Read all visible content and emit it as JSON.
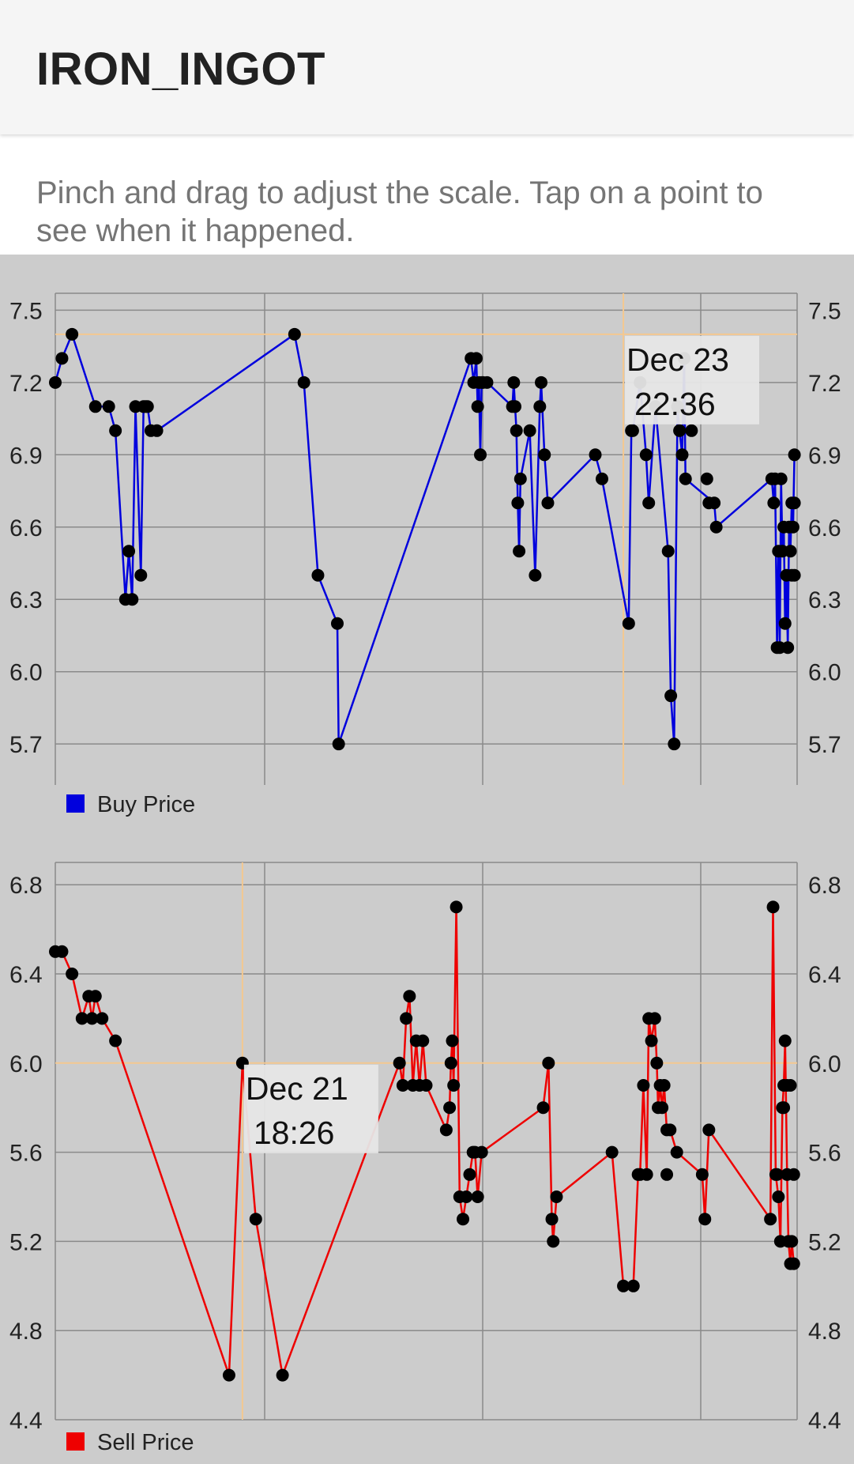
{
  "app_bar": {
    "title": "IRON_INGOT"
  },
  "hint": "Pinch and drag to adjust the scale. Tap on a point to see when it happened.",
  "colors": {
    "background": "#cccccc",
    "buy_line": "#0000dd",
    "sell_line": "#ee0000",
    "point": "#000000",
    "grid": "#8a8a8a",
    "crosshair": "#f4c890",
    "tooltip_bg": "#e6e6e6"
  },
  "chart_data": [
    {
      "type": "line",
      "series": [
        {
          "name": "Buy Price",
          "color": "#0000dd",
          "x": [
            0.0,
            0.1,
            0.25,
            0.6,
            0.8,
            0.9,
            1.05,
            1.1,
            1.15,
            1.2,
            1.28,
            1.32,
            1.35,
            1.38,
            1.43,
            1.52,
            3.58,
            3.72,
            3.93,
            4.22,
            4.24,
            6.22,
            6.26,
            6.3,
            6.32,
            6.34,
            6.36,
            6.38,
            6.4,
            6.46,
            6.84,
            6.86,
            6.88,
            6.9,
            6.92,
            6.94,
            6.96,
            7.1,
            7.18,
            7.25,
            7.27,
            7.32,
            7.37,
            8.08,
            8.18,
            8.58,
            8.62,
            8.64,
            8.75,
            8.84,
            8.88,
            8.98,
            9.17,
            9.21,
            9.26,
            9.31,
            9.34,
            9.38,
            9.41,
            9.43,
            9.86,
            9.89,
            10.72,
            10.75,
            10.77,
            10.8,
            10.82,
            10.84,
            10.86,
            10.88,
            10.9,
            10.92,
            10.94,
            10.96,
            10.98,
            11.0,
            11.02,
            11.04,
            11.06
          ],
          "values": [
            7.2,
            7.3,
            7.4,
            7.1,
            7.1,
            7.0,
            6.3,
            6.5,
            6.3,
            7.1,
            6.4,
            7.1,
            7.1,
            7.1,
            7.0,
            7.0,
            7.4,
            7.2,
            6.4,
            6.2,
            5.7,
            7.3,
            7.2,
            7.3,
            7.1,
            7.2,
            6.9,
            7.2,
            7.2,
            7.2,
            7.1,
            7.2,
            7.1,
            7.0,
            6.7,
            6.5,
            6.8,
            7.0,
            6.4,
            7.1,
            7.2,
            6.9,
            6.7,
            6.9,
            6.8,
            6.2,
            7.0,
            7.0,
            7.2,
            6.9,
            6.7,
            7.1,
            6.5,
            5.9,
            5.7,
            7.1,
            7.0,
            6.9,
            7.3,
            6.8,
            6.7,
            6.6,
            6.8,
            6.7,
            6.8,
            6.1,
            6.5,
            6.1,
            6.8,
            6.5,
            6.6,
            6.2,
            6.4,
            6.1,
            6.6,
            6.5,
            6.7,
            6.6,
            6.9
          ],
          "extra_points": [
            {
              "x": 9.52,
              "y": 7.0
            },
            {
              "x": 9.75,
              "y": 6.8
            },
            {
              "x": 9.78,
              "y": 6.7
            },
            {
              "x": 11.02,
              "y": 6.4
            },
            {
              "x": 11.06,
              "y": 6.7
            },
            {
              "x": 11.06,
              "y": 6.4
            }
          ]
        }
      ],
      "ylim": [
        5.53,
        7.57
      ],
      "yticks": [
        "7.5",
        "7.2",
        "6.9",
        "6.6",
        "6.3",
        "6.0",
        "5.7"
      ],
      "ytick_values": [
        7.5,
        7.2,
        6.9,
        6.6,
        6.3,
        6.0,
        5.7
      ],
      "xlim": [
        0,
        11.1
      ],
      "grid": true,
      "legend": "bottom-left",
      "legend_label": "Buy Price",
      "tooltip": {
        "line1": "Dec 23",
        "line2": "22:36",
        "x": 8.5,
        "y": 7.4
      }
    },
    {
      "type": "line",
      "series": [
        {
          "name": "Sell Price",
          "color": "#ee0000",
          "x": [
            0.0,
            0.1,
            0.25,
            0.4,
            0.5,
            0.55,
            0.6,
            0.7,
            0.9,
            2.6,
            2.8,
            3.0,
            3.4,
            5.15,
            5.2,
            5.25,
            5.3,
            5.35,
            5.4,
            5.45,
            5.5,
            5.55,
            5.85,
            5.9,
            5.92,
            5.94,
            5.96,
            6.0,
            6.05,
            6.1,
            6.15,
            6.2,
            6.25,
            6.28,
            6.32,
            6.38,
            7.3,
            7.38,
            7.43,
            7.45,
            7.5,
            8.33,
            8.5,
            8.65,
            8.72,
            8.75,
            8.8,
            8.85,
            8.88,
            8.92,
            8.97,
            9.0,
            9.02,
            9.05,
            9.08,
            9.11,
            9.15,
            9.2,
            9.3,
            9.68,
            9.72,
            9.78,
            10.7,
            10.74,
            10.78,
            10.82,
            10.85,
            10.88,
            10.9,
            10.92,
            10.95,
            10.97,
            11.0,
            11.02,
            11.05
          ],
          "values": [
            6.5,
            6.5,
            6.4,
            6.2,
            6.3,
            6.2,
            6.3,
            6.2,
            6.1,
            4.6,
            6.0,
            5.3,
            4.6,
            6.0,
            5.9,
            6.2,
            6.3,
            5.9,
            6.1,
            5.9,
            6.1,
            5.9,
            5.7,
            5.8,
            6.0,
            6.1,
            5.9,
            6.7,
            5.4,
            5.3,
            5.4,
            5.5,
            5.6,
            5.6,
            5.4,
            5.6,
            5.8,
            6.0,
            5.3,
            5.2,
            5.4,
            5.6,
            5.0,
            5.0,
            5.5,
            5.5,
            5.9,
            5.5,
            6.2,
            6.1,
            6.2,
            6.0,
            5.8,
            5.9,
            5.8,
            5.9,
            5.7,
            5.7,
            5.6,
            5.5,
            5.3,
            5.7,
            5.3,
            6.7,
            5.5,
            5.4,
            5.2,
            5.8,
            5.9,
            6.1,
            5.5,
            5.2,
            5.1,
            5.2,
            5.1
          ],
          "extra_points": [
            {
              "x": 9.15,
              "y": 5.5
            },
            {
              "x": 10.8,
              "y": 5.5
            },
            {
              "x": 10.9,
              "y": 5.8
            },
            {
              "x": 10.95,
              "y": 5.9
            },
            {
              "x": 11.0,
              "y": 5.9
            },
            {
              "x": 11.05,
              "y": 5.5
            }
          ]
        }
      ],
      "ylim": [
        4.4,
        6.9
      ],
      "yticks": [
        "6.8",
        "6.4",
        "6.0",
        "5.6",
        "5.2",
        "4.8",
        "4.4"
      ],
      "ytick_values": [
        6.8,
        6.4,
        6.0,
        5.6,
        5.2,
        4.8,
        4.4
      ],
      "xlim": [
        0,
        11.1
      ],
      "grid": true,
      "legend": "bottom-left",
      "legend_label": "Sell Price",
      "tooltip": {
        "line1": "Dec 21",
        "line2": "18:26",
        "x": 2.8,
        "y": 6.0
      }
    }
  ]
}
